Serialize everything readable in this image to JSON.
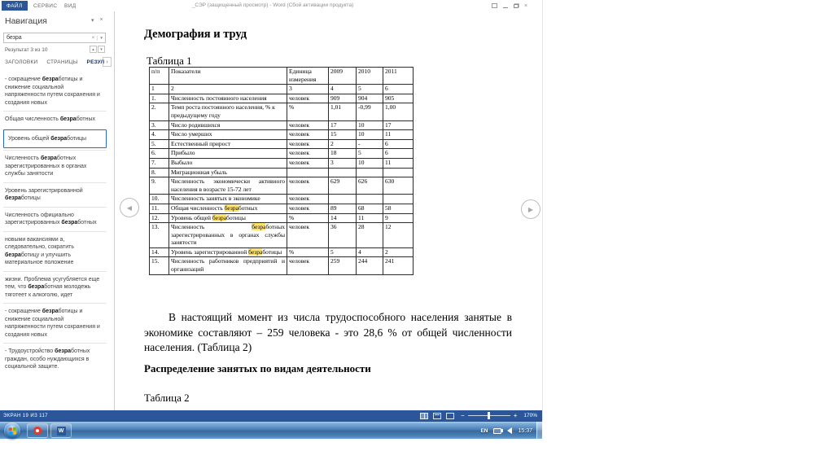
{
  "titlebar": {
    "title": "_СЭР (защищенный просмотр) - Word (Сбой активации продукта)",
    "tabs": [
      {
        "label": "ФАЙЛ",
        "active": true
      },
      {
        "label": "СЕРВИС",
        "active": false
      },
      {
        "label": "ВИД",
        "active": false
      }
    ]
  },
  "icons": {
    "close": "×",
    "dropdown": "▾",
    "up": "▴",
    "down": "▾",
    "chevron": "›",
    "clear": "×",
    "arrow_left": "◀",
    "arrow_right": "▶"
  },
  "navigation": {
    "title": "Навигация",
    "search_value": "безра",
    "result_count": "Результат 3 из 10",
    "tabs": [
      {
        "label": "ЗАГОЛОВКИ",
        "active": false
      },
      {
        "label": "СТРАНИЦЫ",
        "active": false
      },
      {
        "label": "РЕЗУЛ",
        "active": true
      }
    ],
    "results": [
      {
        "pre": "- сокращение ",
        "hit": "безра",
        "post": "ботицы и снижение социальной напряженности путем сохранения и создания новых",
        "selected": false
      },
      {
        "pre": "Общая численность ",
        "hit": "безра",
        "post": "ботных",
        "selected": false
      },
      {
        "pre": "Уровень общей ",
        "hit": "безра",
        "post": "ботицы",
        "selected": true
      },
      {
        "pre": "Численность ",
        "hit": "безра",
        "post": "ботных зарегистрированных в органах службы занятости",
        "selected": false
      },
      {
        "pre": "Уровень зарегистрированной ",
        "hit": "безра",
        "post": "ботицы",
        "selected": false
      },
      {
        "pre": "Численность официально ",
        "hit": "",
        "post": "",
        "pre2": "зарегистрированных ",
        "hit2": "безра",
        "post2": "ботных",
        "selected": false
      },
      {
        "pre": "новыми вакансиями а, следовательно, сократить ",
        "hit": "безра",
        "post": "ботицу и улучшить материальное положение",
        "selected": false
      },
      {
        "pre": "жизни. Проблема усугубляется еще тем, что ",
        "hit": "безра",
        "post": "ботная молодежь тяготеет к алкоголю, идет",
        "selected": false
      },
      {
        "pre": "- сокращение ",
        "hit": "безра",
        "post": "ботицы и снижение социальной напряженности путем сохранения и создания новых",
        "selected": false
      },
      {
        "pre": "- Трудоустройство ",
        "hit": "безра",
        "post": "ботных граждан, особо нуждающихся в социальной защите.",
        "selected": false
      }
    ]
  },
  "document": {
    "heading1": "Демография и труд",
    "table1_caption": "Таблица 1",
    "paragraph": "В настоящий момент из числа трудоспособного населения занятые в экономике составляют – 259 человека - это  28,6 % от общей численности населения. (Таблица 2)",
    "heading2": "Распределение занятых по видам деятельности",
    "table2_caption": "Таблица 2"
  },
  "table1": {
    "headers": [
      "п/п",
      "Показатели",
      "Единица измерения",
      "2009",
      "2010",
      "2011"
    ],
    "index_row": [
      "1",
      "2",
      "3",
      "4",
      "5",
      "6"
    ],
    "rows": [
      {
        "num": "1.",
        "pre": "Численность постоянного населения",
        "hit": "",
        "post": "",
        "unit": "человек",
        "y2009": "909",
        "y2010": "904",
        "y2011": "905",
        "justify": false
      },
      {
        "num": "2.",
        "pre": "Темп роста постоянного населения, % к предыдущему году",
        "hit": "",
        "post": "",
        "unit": "%",
        "y2009": "1,01",
        "y2010": "-0,99",
        "y2011": "1,00",
        "justify": false
      },
      {
        "num": "3.",
        "pre": "Число родившихся",
        "hit": "",
        "post": "",
        "unit": "человек",
        "y2009": "17",
        "y2010": "10",
        "y2011": "17",
        "justify": false
      },
      {
        "num": "4.",
        "pre": "Число умерших",
        "hit": "",
        "post": "",
        "unit": "человек",
        "y2009": "15",
        "y2010": "10",
        "y2011": "11",
        "justify": false
      },
      {
        "num": "5.",
        "pre": "Естественный прирост",
        "hit": "",
        "post": "",
        "unit": "человек",
        "y2009": "2",
        "y2010": "-",
        "y2011": "6",
        "justify": false
      },
      {
        "num": "6.",
        "pre": "Прибыло",
        "hit": "",
        "post": "",
        "unit": "человек",
        "y2009": "18",
        "y2010": "5",
        "y2011": "6",
        "justify": false
      },
      {
        "num": "7.",
        "pre": "Выбыло",
        "hit": "",
        "post": "",
        "unit": "человек",
        "y2009": "3",
        "y2010": "10",
        "y2011": "11",
        "justify": false
      },
      {
        "num": "8.",
        "pre": "Миграционная убыль",
        "hit": "",
        "post": "",
        "unit": "",
        "y2009": "",
        "y2010": "",
        "y2011": "",
        "justify": false
      },
      {
        "num": "9.",
        "pre": "Численность экономически активного населения в возрасте 15-72 лет",
        "hit": "",
        "post": "",
        "unit": "человек",
        "y2009": "629",
        "y2010": "626",
        "y2011": "630",
        "justify": true
      },
      {
        "num": "10.",
        "pre": "Численность занятых в экономике",
        "hit": "",
        "post": "",
        "unit": "человек",
        "y2009": "",
        "y2010": "",
        "y2011": "",
        "justify": false
      },
      {
        "num": "11.",
        "pre": "Общая численность ",
        "hit": "безра",
        "post": "ботных",
        "unit": "человек",
        "y2009": "89",
        "y2010": "68",
        "y2011": "58",
        "justify": false
      },
      {
        "num": "12.",
        "pre": "Уровень общей ",
        "hit": "безра",
        "post": "ботицы",
        "unit": "%",
        "y2009": "14",
        "y2010": "11",
        "y2011": "9",
        "justify": false
      },
      {
        "num": "13.",
        "pre": "Численность ",
        "hit": "безра",
        "post": "ботных зарегистрированных в органах службы занятости",
        "unit": "человек",
        "y2009": "36",
        "y2010": "28",
        "y2011": "12",
        "justify": true
      },
      {
        "num": "14.",
        "pre": "Уровень зарегистрированной ",
        "hit": "безра",
        "post": "ботицы",
        "unit": "%",
        "y2009": "5",
        "y2010": "4",
        "y2011": "2",
        "justify": true
      },
      {
        "num": "15.",
        "pre": "Численность работников предприятий и организаций",
        "hit": "",
        "post": "",
        "unit": "человек",
        "y2009": "259",
        "y2010": "244",
        "y2011": "241",
        "justify": true
      }
    ]
  },
  "statusbar": {
    "left_label": "ЭКРАН 19 ИЗ 117",
    "zoom_minus": "−",
    "zoom_plus": "+",
    "zoom_level": "170%"
  },
  "taskbar": {
    "tray_language": "EN",
    "clock": "15:37"
  }
}
